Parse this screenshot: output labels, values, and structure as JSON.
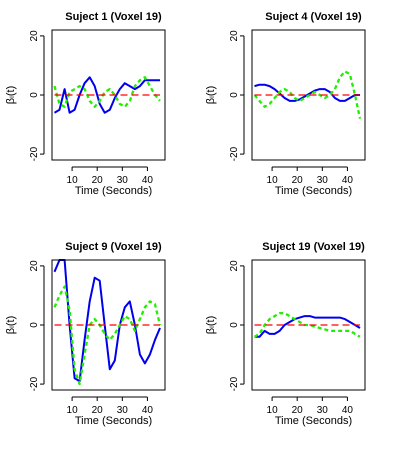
{
  "colors": {
    "solid": "#0000ee",
    "dashed": "#22ee00",
    "zero": "#ff0000",
    "axis": "#000000"
  },
  "chart_data": [
    {
      "type": "line",
      "title": "Suject 1 (Voxel 19)",
      "xlabel": "Time (Seconds)",
      "ylabel": "βₗ(t)",
      "ylim": [
        -22,
        22
      ],
      "yticks": [
        -20,
        0,
        20
      ],
      "xticks": [
        10,
        20,
        30,
        40
      ],
      "grid": false,
      "series": [
        {
          "style": "solid",
          "x": [
            3,
            5,
            7,
            9,
            11,
            13,
            15,
            17,
            19,
            21,
            23,
            25,
            27,
            29,
            31,
            33,
            35,
            37,
            39,
            41,
            43,
            45
          ],
          "y": [
            -6,
            -5,
            2,
            -6,
            -5,
            0,
            4,
            6,
            3,
            -3,
            -6,
            -5,
            -1,
            2,
            4,
            3,
            2,
            3,
            5,
            5,
            5,
            5
          ]
        },
        {
          "style": "dashed",
          "x": [
            3,
            5,
            7,
            9,
            11,
            13,
            15,
            17,
            19,
            21,
            23,
            25,
            27,
            29,
            31,
            33,
            35,
            37,
            39,
            41,
            43,
            45
          ],
          "y": [
            3,
            -3,
            -4,
            1,
            2,
            3,
            2,
            -2,
            -4,
            -2,
            1,
            2,
            0,
            -3,
            -4,
            -2,
            3,
            5,
            6,
            3,
            0,
            -2
          ]
        },
        {
          "style": "zero",
          "x": [
            3,
            45
          ],
          "y": [
            0,
            0
          ]
        }
      ]
    },
    {
      "type": "line",
      "title": "Suject 4 (Voxel 19)",
      "xlabel": "Time (Seconds)",
      "ylabel": "βₗ(t)",
      "ylim": [
        -22,
        22
      ],
      "yticks": [
        -20,
        0,
        20
      ],
      "xticks": [
        10,
        20,
        30,
        40
      ],
      "grid": false,
      "series": [
        {
          "style": "solid",
          "x": [
            3,
            5,
            7,
            9,
            11,
            13,
            15,
            17,
            19,
            21,
            23,
            25,
            27,
            29,
            31,
            33,
            35,
            37,
            39,
            41,
            43,
            45
          ],
          "y": [
            3,
            3.5,
            3.5,
            3,
            2,
            0.5,
            -1,
            -2,
            -2,
            -1.5,
            -0.5,
            0.5,
            1.5,
            2,
            2,
            1,
            -1,
            -2,
            -2,
            -1,
            0,
            0
          ]
        },
        {
          "style": "dashed",
          "x": [
            3,
            5,
            7,
            9,
            11,
            13,
            15,
            17,
            19,
            21,
            23,
            25,
            27,
            29,
            31,
            33,
            35,
            37,
            39,
            41,
            43,
            45
          ],
          "y": [
            0,
            -2,
            -4,
            -3,
            -1,
            1,
            2,
            1,
            -1,
            -2,
            -1,
            0,
            1,
            0,
            -1,
            0,
            2,
            6,
            8,
            7,
            0,
            -8
          ]
        },
        {
          "style": "zero",
          "x": [
            3,
            45
          ],
          "y": [
            0,
            0
          ]
        }
      ]
    },
    {
      "type": "line",
      "title": "Suject 9 (Voxel 19)",
      "xlabel": "Time (Seconds)",
      "ylabel": "βₗ(t)",
      "ylim": [
        -22,
        22
      ],
      "yticks": [
        -20,
        0,
        20
      ],
      "xticks": [
        10,
        20,
        30,
        40
      ],
      "grid": false,
      "series": [
        {
          "style": "solid",
          "x": [
            3,
            5,
            7,
            9,
            11,
            13,
            15,
            17,
            19,
            21,
            23,
            25,
            27,
            29,
            31,
            33,
            35,
            37,
            39,
            41,
            43,
            45
          ],
          "y": [
            18,
            22,
            22,
            0,
            -18,
            -19,
            -5,
            8,
            16,
            15,
            0,
            -15,
            -12,
            0,
            6,
            8,
            0,
            -10,
            -13,
            -10,
            -5,
            -1
          ]
        },
        {
          "style": "dashed",
          "x": [
            3,
            5,
            7,
            9,
            11,
            13,
            15,
            17,
            19,
            21,
            23,
            25,
            27,
            29,
            31,
            33,
            35,
            37,
            39,
            41,
            43,
            45
          ],
          "y": [
            6,
            10,
            13,
            5,
            -15,
            -20,
            -10,
            0,
            2,
            0,
            -3,
            -5,
            -3,
            0,
            3,
            2,
            -2,
            2,
            6,
            8,
            7,
            0
          ]
        },
        {
          "style": "zero",
          "x": [
            3,
            45
          ],
          "y": [
            0,
            0
          ]
        }
      ]
    },
    {
      "type": "line",
      "title": "Suject 19 (Voxel 19)",
      "xlabel": "Time (Seconds)",
      "ylabel": "βₗ(t)",
      "ylim": [
        -22,
        22
      ],
      "yticks": [
        -20,
        0,
        20
      ],
      "xticks": [
        10,
        20,
        30,
        40
      ],
      "grid": false,
      "series": [
        {
          "style": "solid",
          "x": [
            3,
            5,
            7,
            9,
            11,
            13,
            15,
            17,
            19,
            21,
            23,
            25,
            27,
            29,
            31,
            33,
            35,
            37,
            39,
            41,
            43,
            45
          ],
          "y": [
            -4,
            -4,
            -2,
            -3,
            -3,
            -2,
            0,
            1,
            2,
            2.5,
            3,
            3,
            2.5,
            2.5,
            2.5,
            2.5,
            2.5,
            2.5,
            2,
            1,
            0,
            -1
          ]
        },
        {
          "style": "dashed",
          "x": [
            3,
            5,
            7,
            9,
            11,
            13,
            15,
            17,
            19,
            21,
            23,
            25,
            27,
            29,
            31,
            33,
            35,
            37,
            39,
            41,
            43,
            45
          ],
          "y": [
            -4,
            -3,
            0,
            2,
            3,
            4,
            4,
            3,
            2,
            1,
            0,
            0,
            -0.5,
            -1,
            -1.5,
            -2,
            -2,
            -2,
            -2,
            -2,
            -3,
            -4
          ]
        },
        {
          "style": "zero",
          "x": [
            3,
            45
          ],
          "y": [
            0,
            0
          ]
        }
      ]
    }
  ]
}
